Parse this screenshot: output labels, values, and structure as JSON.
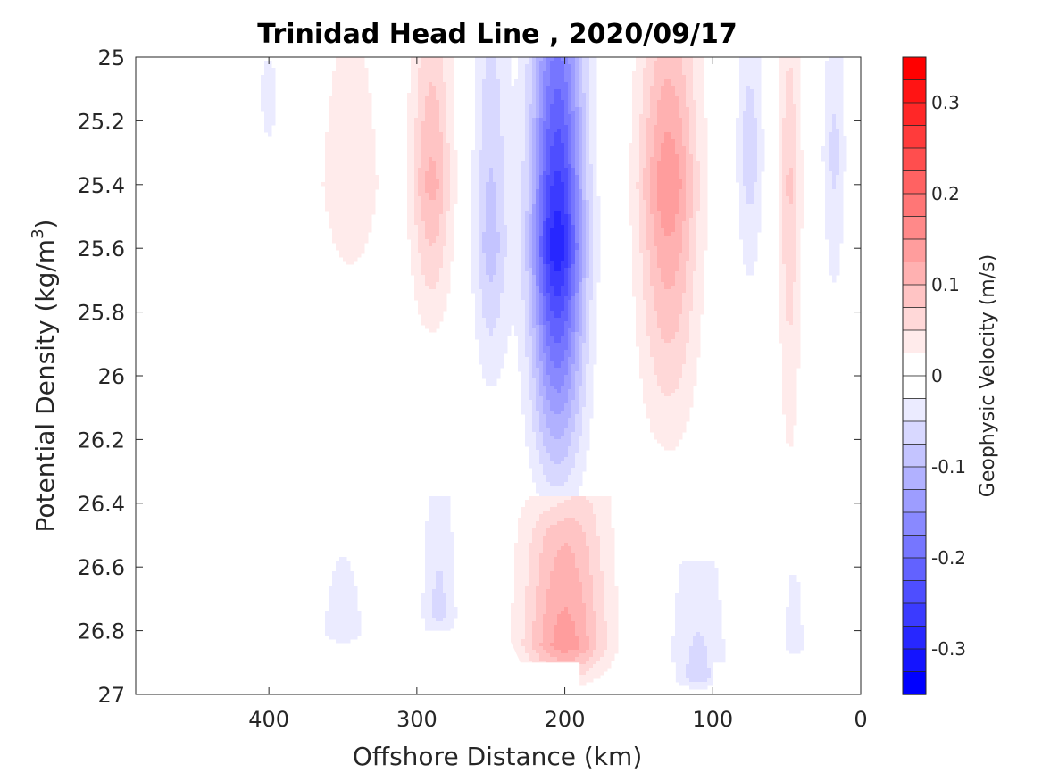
{
  "chart_data": {
    "type": "contour",
    "title": "Trinidad Head Line , 2020/09/17",
    "xlabel": "Offshore Distance (km)",
    "ylabel_main": "Potential Density (kg/m",
    "ylabel_sup": "3",
    "ylabel_end": ")",
    "xlim": [
      490,
      0
    ],
    "x_reversed": true,
    "ylim": [
      25,
      27
    ],
    "y_reversed": true,
    "xticks": [
      400,
      300,
      200,
      100,
      0
    ],
    "xtick_labels": [
      "400",
      "300",
      "200",
      "100",
      "0"
    ],
    "yticks": [
      25,
      25.2,
      25.4,
      25.6,
      25.8,
      26,
      26.2,
      26.4,
      26.6,
      26.8,
      27
    ],
    "ytick_labels": [
      "25",
      "25.2",
      "25.4",
      "25.6",
      "25.8",
      "26",
      "26.2",
      "26.4",
      "26.6",
      "26.8",
      "27"
    ],
    "colorbar": {
      "label": "Geophysic Velocity (m/s)",
      "range": [
        -0.35,
        0.35
      ],
      "step": 0.025,
      "ticks": [
        0.3,
        0.2,
        0.1,
        0,
        -0.1,
        -0.2,
        -0.3
      ],
      "tick_labels": [
        "0.3",
        "0.2",
        "0.1",
        "0",
        "-0.1",
        "-0.2",
        "-0.3"
      ]
    },
    "colormap": {
      "negative": "#0000ff",
      "zero": "#ffffff",
      "positive": "#ff0000"
    },
    "features": [
      {
        "name": "strong southward core",
        "x_center": 205,
        "x_width": 18,
        "y_top": 25.0,
        "y_bottom": 26.5,
        "y_mid": 25.6,
        "peak": -0.3
      },
      {
        "name": "northward band",
        "x_center": 130,
        "x_width": 20,
        "y_top": 25.0,
        "y_bottom": 26.4,
        "y_mid": 25.4,
        "peak": 0.15
      },
      {
        "name": "northward band",
        "x_center": 290,
        "x_width": 14,
        "y_top": 25.0,
        "y_bottom": 26.0,
        "y_mid": 25.4,
        "peak": 0.11
      },
      {
        "name": "southward band",
        "x_center": 250,
        "x_width": 12,
        "y_top": 25.0,
        "y_bottom": 26.2,
        "y_mid": 25.6,
        "peak": -0.09
      },
      {
        "name": "weak northward",
        "x_center": 345,
        "x_width": 22,
        "y_top": 25.0,
        "y_bottom": 25.9,
        "y_mid": 25.4,
        "peak": 0.05
      },
      {
        "name": "southward band",
        "x_center": 75,
        "x_width": 9,
        "y_top": 25.0,
        "y_bottom": 25.9,
        "y_mid": 25.3,
        "peak": -0.07
      },
      {
        "name": "northward band",
        "x_center": 48,
        "x_width": 8,
        "y_top": 25.0,
        "y_bottom": 26.6,
        "y_mid": 25.4,
        "peak": 0.08
      },
      {
        "name": "southward band",
        "x_center": 18,
        "x_width": 8,
        "y_top": 25.0,
        "y_bottom": 26.0,
        "y_mid": 25.3,
        "peak": -0.06
      },
      {
        "name": "weak southward",
        "x_center": 400,
        "x_width": 8,
        "y_top": 25.0,
        "y_bottom": 25.5,
        "y_mid": 25.1,
        "peak": -0.04
      },
      {
        "name": "deep northward",
        "x_center": 200,
        "x_width": 28,
        "y_top": 26.4,
        "y_bottom": 27.0,
        "y_mid": 26.85,
        "peak": 0.14
      },
      {
        "name": "deep southward",
        "x_center": 285,
        "x_width": 12,
        "y_top": 26.4,
        "y_bottom": 26.9,
        "y_mid": 26.75,
        "peak": -0.06
      },
      {
        "name": "deep southward",
        "x_center": 350,
        "x_width": 18,
        "y_top": 26.55,
        "y_bottom": 26.9,
        "y_mid": 26.8,
        "peak": -0.04
      },
      {
        "name": "deep southward",
        "x_center": 110,
        "x_width": 20,
        "y_top": 26.6,
        "y_bottom": 27.0,
        "y_mid": 26.95,
        "peak": -0.06
      },
      {
        "name": "deep southward",
        "x_center": 45,
        "x_width": 7,
        "y_top": 26.65,
        "y_bottom": 26.9,
        "y_mid": 26.85,
        "peak": -0.05
      }
    ]
  }
}
